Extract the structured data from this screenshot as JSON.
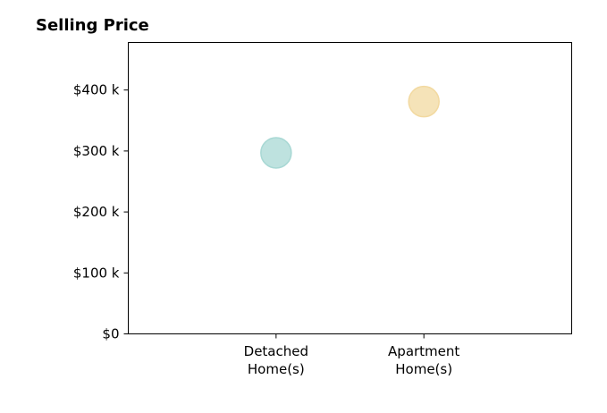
{
  "chart_data": {
    "type": "scatter",
    "title": "Selling Price",
    "xlabel": "",
    "ylabel": "",
    "categories": [
      [
        "Detached",
        "Home(s)"
      ],
      [
        "Apartment",
        "Home(s)"
      ]
    ],
    "yticks": [
      {
        "value": 0,
        "label": "$0"
      },
      {
        "value": 100000,
        "label": "$100 k"
      },
      {
        "value": 200000,
        "label": "$200 k"
      },
      {
        "value": 300000,
        "label": "$300 k"
      },
      {
        "value": 400000,
        "label": "$400 k"
      }
    ],
    "ylim": [
      0,
      478000
    ],
    "xlim": [
      -1,
      2
    ],
    "grid": false,
    "legend": "none",
    "points": [
      {
        "category": 0,
        "value": 297000,
        "color": "#a8d8d4"
      },
      {
        "category": 1,
        "value": 381000,
        "color": "#f2d9a0"
      }
    ]
  }
}
